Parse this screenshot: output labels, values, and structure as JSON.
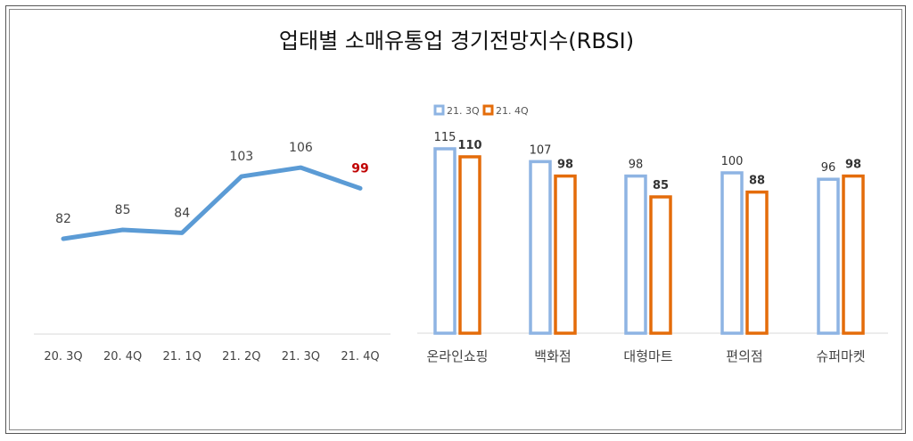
{
  "title": "업태별 소매유통업 경기전망지수(RBSI)",
  "chart_data": [
    {
      "type": "line",
      "categories": [
        "20. 3Q",
        "20. 4Q",
        "21. 1Q",
        "21. 2Q",
        "21. 3Q",
        "21. 4Q"
      ],
      "values": [
        82,
        85,
        84,
        103,
        106,
        99
      ],
      "highlight_last_color": "#c00000",
      "color": "#5b9bd5"
    },
    {
      "type": "bar",
      "categories": [
        "온라인쇼핑",
        "백화점",
        "대형마트",
        "편의점",
        "슈퍼마켓"
      ],
      "series": [
        {
          "name": "21. 3Q",
          "values": [
            115,
            107,
            98,
            100,
            96
          ],
          "color": "#8eb4e3"
        },
        {
          "name": "21. 4Q",
          "values": [
            110,
            98,
            85,
            88,
            98
          ],
          "color": "#e46c0a"
        }
      ],
      "legend": "top-left"
    }
  ]
}
